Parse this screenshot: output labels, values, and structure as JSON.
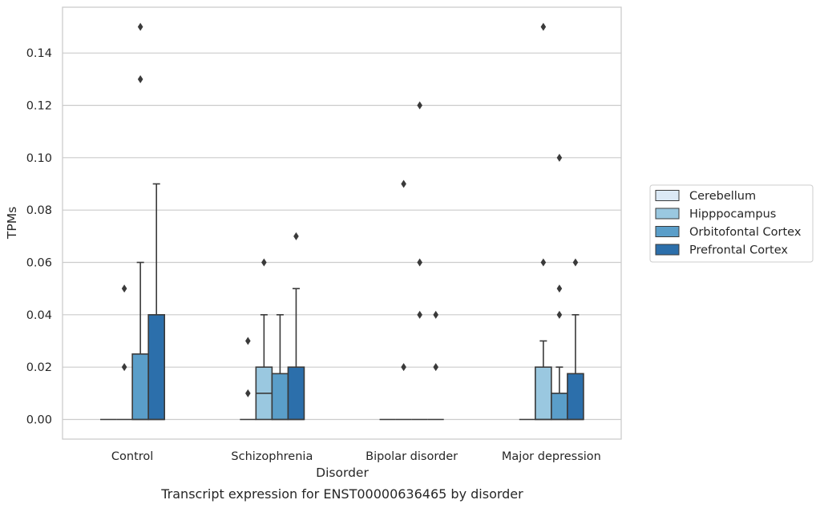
{
  "chart_data": {
    "type": "box",
    "title": "",
    "caption": "Transcript expression for ENST00000636465 by disorder",
    "xlabel": "Disorder",
    "ylabel": "TPMs",
    "ylim": [
      -0.0075,
      0.1575
    ],
    "y_ticks": [
      "0.00",
      "0.02",
      "0.04",
      "0.06",
      "0.08",
      "0.10",
      "0.12",
      "0.14"
    ],
    "grid": "horizontal",
    "legend_position": "right",
    "categories": [
      "Control",
      "Schizophrenia",
      "Bipolar disorder",
      "Major depression"
    ],
    "series": [
      {
        "name": "Cerebellum",
        "color": "#dbe9f6",
        "boxes": [
          {
            "q1": 0,
            "median": 0,
            "q3": 0,
            "whisker_low": 0,
            "whisker_high": 0,
            "outliers": []
          },
          {
            "q1": 0,
            "median": 0,
            "q3": 0,
            "whisker_low": 0,
            "whisker_high": 0,
            "outliers": [
              0.03,
              0.01
            ]
          },
          {
            "q1": 0,
            "median": 0,
            "q3": 0,
            "whisker_low": 0,
            "whisker_high": 0,
            "outliers": []
          },
          {
            "q1": 0,
            "median": 0,
            "q3": 0,
            "whisker_low": 0,
            "whisker_high": 0,
            "outliers": []
          }
        ]
      },
      {
        "name": "Hipppocampus",
        "color": "#9ac8e0",
        "boxes": [
          {
            "q1": 0,
            "median": 0,
            "q3": 0,
            "whisker_low": 0,
            "whisker_high": 0,
            "outliers": [
              0.05,
              0.02
            ]
          },
          {
            "q1": 0,
            "median": 0.01,
            "q3": 0.02,
            "whisker_low": 0,
            "whisker_high": 0.04,
            "outliers": [
              0.06
            ]
          },
          {
            "q1": 0,
            "median": 0,
            "q3": 0,
            "whisker_low": 0,
            "whisker_high": 0,
            "outliers": [
              0.09,
              0.02
            ]
          },
          {
            "q1": 0,
            "median": 0,
            "q3": 0.02,
            "whisker_low": 0,
            "whisker_high": 0.03,
            "outliers": [
              0.15,
              0.06
            ]
          }
        ]
      },
      {
        "name": "Orbitofontal Cortex",
        "color": "#5a9ec9",
        "boxes": [
          {
            "q1": 0,
            "median": 0,
            "q3": 0.025,
            "whisker_low": 0,
            "whisker_high": 0.06,
            "outliers": [
              0.15,
              0.13
            ]
          },
          {
            "q1": 0,
            "median": 0,
            "q3": 0.0175,
            "whisker_low": 0,
            "whisker_high": 0.04,
            "outliers": []
          },
          {
            "q1": 0,
            "median": 0,
            "q3": 0,
            "whisker_low": 0,
            "whisker_high": 0,
            "outliers": [
              0.12,
              0.06,
              0.04
            ]
          },
          {
            "q1": 0,
            "median": 0,
            "q3": 0.01,
            "whisker_low": 0,
            "whisker_high": 0.02,
            "outliers": [
              0.1,
              0.05,
              0.04
            ]
          }
        ]
      },
      {
        "name": "Prefrontal Cortex",
        "color": "#2c6fab",
        "boxes": [
          {
            "q1": 0,
            "median": 0,
            "q3": 0.04,
            "whisker_low": 0,
            "whisker_high": 0.09,
            "outliers": []
          },
          {
            "q1": 0,
            "median": 0,
            "q3": 0.02,
            "whisker_low": 0,
            "whisker_high": 0.05,
            "outliers": [
              0.07
            ]
          },
          {
            "q1": 0,
            "median": 0,
            "q3": 0,
            "whisker_low": 0,
            "whisker_high": 0,
            "outliers": [
              0.04,
              0.02
            ]
          },
          {
            "q1": 0,
            "median": 0,
            "q3": 0.0175,
            "whisker_low": 0,
            "whisker_high": 0.04,
            "outliers": [
              0.06
            ]
          }
        ]
      }
    ]
  }
}
